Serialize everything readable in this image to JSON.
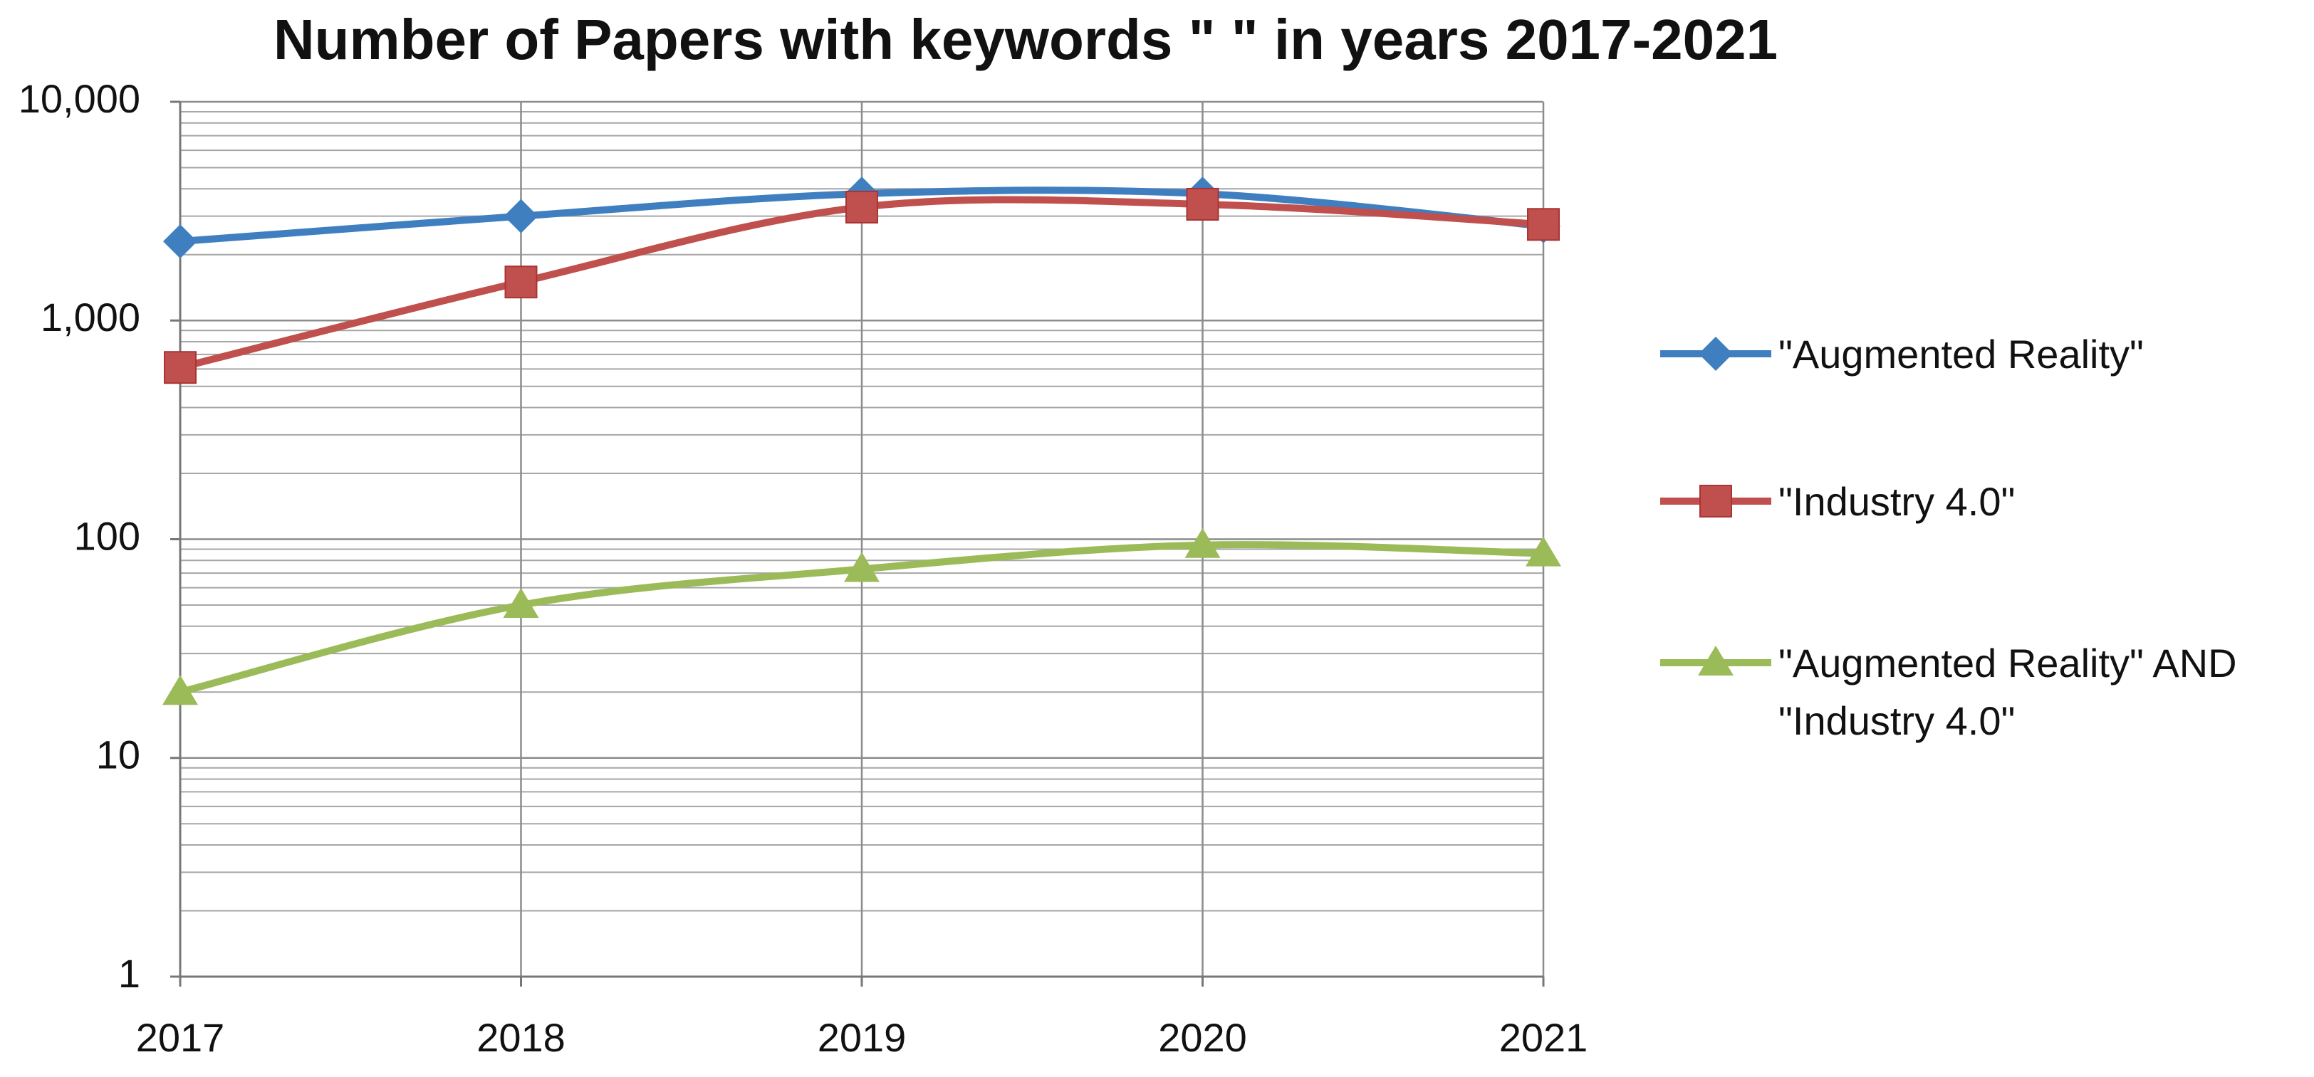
{
  "chart_data": {
    "type": "line",
    "title": "Number of Papers with keywords \" \" in years 2017-2021",
    "categories": [
      "2017",
      "2018",
      "2019",
      "2020",
      "2021"
    ],
    "series": [
      {
        "name": "\"Augmented Reality\"",
        "color": "#3f7fc0",
        "marker": "diamond",
        "values": [
          2300,
          3000,
          3800,
          3800,
          2700
        ]
      },
      {
        "name": "\"Industry 4.0\"",
        "color": "#c0504d",
        "marker": "square",
        "values": [
          610,
          1500,
          3300,
          3400,
          2750
        ]
      },
      {
        "name": "\"Augmented Reality\" AND \"Industry 4.0\"",
        "color": "#9bbb59",
        "marker": "triangle",
        "values": [
          20,
          50,
          73,
          94,
          86
        ]
      }
    ],
    "ylim": [
      1,
      10000
    ],
    "yticks": [
      1,
      10,
      100,
      {
        "value": 1000,
        "label": "1,000"
      },
      {
        "value": 10000,
        "label": "10,000"
      }
    ],
    "log_scale": true,
    "grid": true,
    "minor_grid": true,
    "smooth": true,
    "legend": "right"
  }
}
